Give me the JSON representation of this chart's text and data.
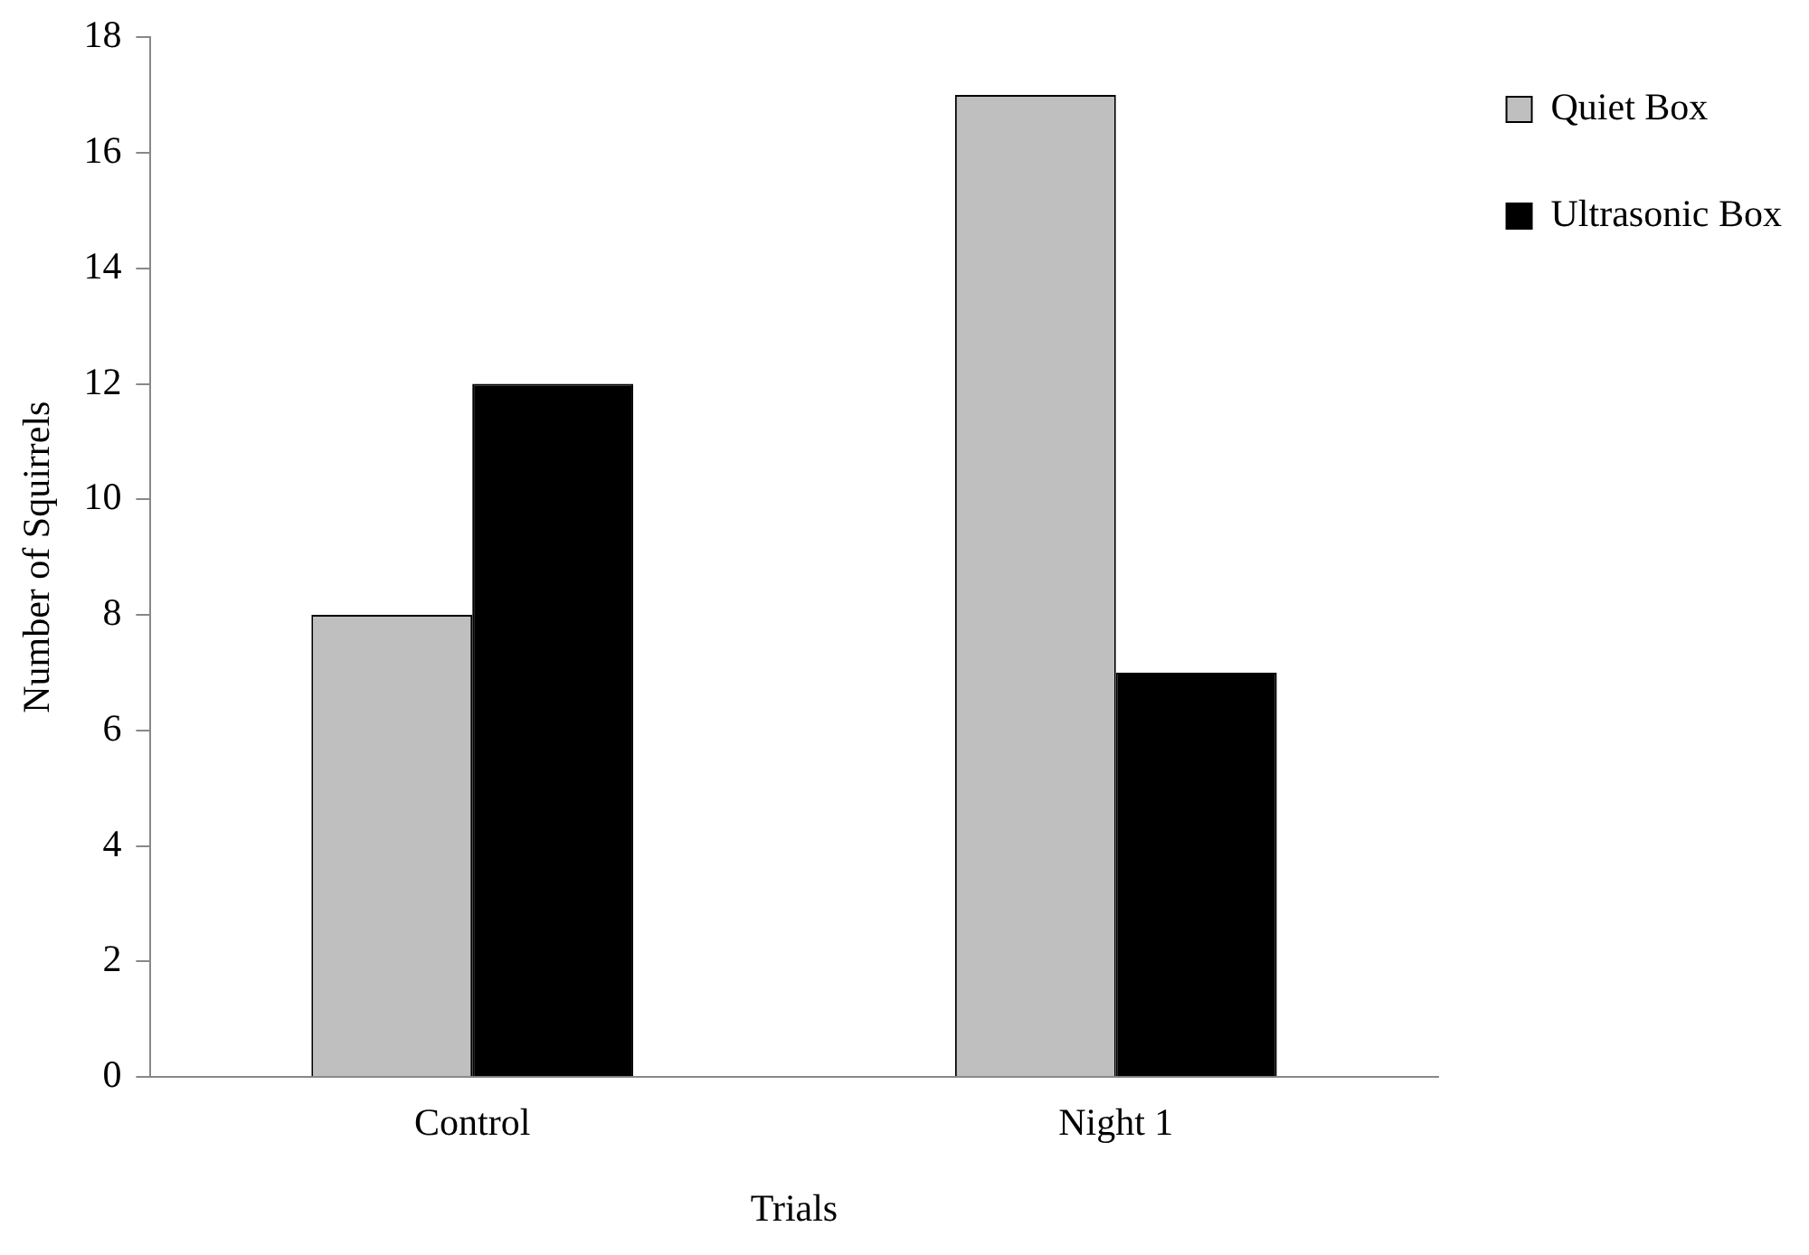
{
  "chart_data": {
    "type": "bar",
    "xlabel": "Trials",
    "ylabel": "Number of Squirrels",
    "categories": [
      "Control",
      "Night 1"
    ],
    "series": [
      {
        "name": "Quiet Box",
        "color": "#bfbfbf",
        "values": [
          8,
          17
        ]
      },
      {
        "name": "Ultrasonic Box",
        "color": "#000000",
        "values": [
          12,
          7
        ]
      }
    ],
    "ylim": [
      0,
      18
    ],
    "yticks": [
      0,
      2,
      4,
      6,
      8,
      10,
      12,
      14,
      16,
      18
    ],
    "grid": false,
    "legend": "right"
  }
}
